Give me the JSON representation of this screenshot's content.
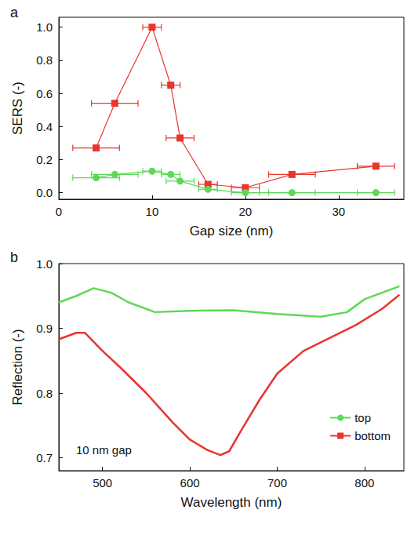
{
  "chart_data": [
    {
      "type": "line",
      "title": "a",
      "x_label": "Gap size (nm)",
      "y_label": "SERS (-)",
      "xlim": [
        0,
        37
      ],
      "xticks": [
        0,
        10,
        20,
        30
      ],
      "ylim": [
        -0.04,
        1.06
      ],
      "yticks": [
        {
          "value": 0,
          "label": "0.0"
        },
        0.2,
        0.4,
        0.6,
        0.8,
        {
          "value": 1,
          "label": "1.0"
        }
      ],
      "grid": false,
      "series": [
        {
          "name": "bottom",
          "color": "#e8352e",
          "marker": "square",
          "x": [
            4,
            6,
            10,
            12,
            13,
            16,
            20,
            25,
            34
          ],
          "values": [
            0.27,
            0.54,
            1.0,
            0.65,
            0.33,
            0.05,
            0.03,
            0.11,
            0.16
          ],
          "xerr": [
            2.5,
            2.5,
            1,
            1,
            1.5,
            1,
            1.5,
            2.5,
            2
          ]
        },
        {
          "name": "top",
          "color": "#5cd957",
          "marker": "circle",
          "x": [
            4,
            6,
            10,
            12,
            13,
            16,
            20,
            25,
            34
          ],
          "values": [
            0.09,
            0.11,
            0.13,
            0.11,
            0.07,
            0.02,
            0.0,
            0.0,
            0.0
          ],
          "xerr": [
            2.5,
            2.5,
            1,
            1,
            1.5,
            1,
            1.5,
            2.5,
            2
          ]
        }
      ]
    },
    {
      "type": "line",
      "title": "b",
      "x_label": "Wavelength (nm)",
      "y_label": "Reflection (-)",
      "xlim": [
        450,
        845
      ],
      "xticks": [
        500,
        600,
        700,
        800
      ],
      "ylim": [
        0.68,
        1.0
      ],
      "yticks": [
        0.7,
        0.8,
        0.9,
        {
          "value": 1,
          "label": "1.0"
        }
      ],
      "grid": false,
      "legend": "lower right",
      "annotations": [
        "10 nm gap"
      ],
      "series": [
        {
          "name": "top",
          "color": "#5cd957",
          "x": [
            450,
            470,
            490,
            510,
            530,
            560,
            600,
            650,
            700,
            750,
            780,
            800,
            820,
            840
          ],
          "values": [
            0.94,
            0.95,
            0.962,
            0.955,
            0.94,
            0.925,
            0.927,
            0.928,
            0.922,
            0.918,
            0.925,
            0.945,
            0.955,
            0.965
          ]
        },
        {
          "name": "bottom",
          "color": "#e8352e",
          "x": [
            450,
            470,
            480,
            500,
            520,
            550,
            580,
            600,
            620,
            635,
            645,
            660,
            680,
            700,
            730,
            760,
            790,
            820,
            840
          ],
          "values": [
            0.883,
            0.893,
            0.893,
            0.865,
            0.84,
            0.8,
            0.755,
            0.728,
            0.712,
            0.704,
            0.71,
            0.745,
            0.79,
            0.83,
            0.865,
            0.885,
            0.905,
            0.93,
            0.952
          ]
        }
      ]
    }
  ]
}
